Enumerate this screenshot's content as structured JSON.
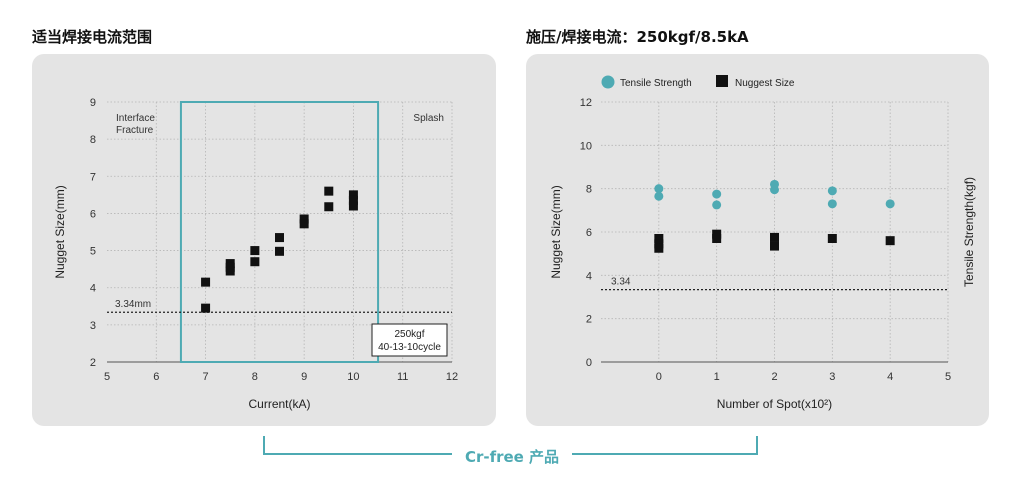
{
  "left_title": "适当焊接电流范围",
  "right_title": "施压/焊接电流：250kgf/8.5kA",
  "footer_label": "Cr-free 产品",
  "colors": {
    "accent": "#4eaab3",
    "panel": "#e4e4e4",
    "marker": "#111111"
  },
  "chart_data": [
    {
      "type": "scatter",
      "title": "适当焊接电流范围",
      "xlabel": "Current(kA)",
      "ylabel": "Nugget Size(mm)",
      "xlim": [
        5,
        12
      ],
      "ylim": [
        2,
        9
      ],
      "xticks": [
        5,
        6,
        7,
        8,
        9,
        10,
        11,
        12
      ],
      "yticks": [
        2,
        3,
        4,
        5,
        6,
        7,
        8,
        9
      ],
      "grid": true,
      "series": [
        {
          "marker": "square",
          "points": [
            [
              7,
              4.15
            ],
            [
              7,
              3.45
            ],
            [
              7.5,
              4.65
            ],
            [
              7.5,
              4.55
            ],
            [
              7.5,
              4.45
            ],
            [
              8,
              5.0
            ],
            [
              8,
              4.7
            ],
            [
              8.5,
              5.35
            ],
            [
              8.5,
              4.98
            ],
            [
              9,
              5.85
            ],
            [
              9,
              5.72
            ],
            [
              9.5,
              6.6
            ],
            [
              9.5,
              6.18
            ],
            [
              10,
              6.5
            ],
            [
              10,
              6.35
            ],
            [
              10,
              6.2
            ]
          ]
        }
      ],
      "threshold": {
        "value": 3.34,
        "label": "3.34mm"
      },
      "region": {
        "x": [
          6.5,
          10.5
        ],
        "y": [
          2,
          9
        ]
      },
      "annotations": {
        "left": [
          "Interface",
          "Fracture"
        ],
        "right": "Splash",
        "condition": [
          "250kgf",
          "40-13-10cycle"
        ]
      }
    },
    {
      "type": "scatter",
      "title": "施压/焊接电流：250kgf/8.5kA",
      "xlabel": "Number of Spot(x10²)",
      "ylabel": "Nugget Size(mm)",
      "ylabel_right": "Tensile Strength(kgf)",
      "xlim": [
        -1,
        5
      ],
      "ylim": [
        0,
        12
      ],
      "xticks": [
        0,
        1,
        2,
        3,
        4,
        5
      ],
      "yticks": [
        0,
        2,
        4,
        6,
        8,
        10,
        12
      ],
      "grid": true,
      "legend_position": "top",
      "series": [
        {
          "name": "Tensile Strength",
          "marker": "circle",
          "color": "#4eaab3",
          "points": [
            [
              0,
              8.0
            ],
            [
              0,
              7.65
            ],
            [
              1,
              7.75
            ],
            [
              1,
              7.25
            ],
            [
              2,
              8.2
            ],
            [
              2,
              7.95
            ],
            [
              3,
              7.9
            ],
            [
              3,
              7.3
            ],
            [
              4,
              7.3
            ]
          ]
        },
        {
          "name": "Nuggest Size",
          "marker": "square",
          "color": "#111111",
          "points": [
            [
              0,
              5.7
            ],
            [
              0,
              5.45
            ],
            [
              0,
              5.25
            ],
            [
              1,
              5.9
            ],
            [
              1,
              5.7
            ],
            [
              2,
              5.75
            ],
            [
              2,
              5.35
            ],
            [
              3,
              5.7
            ],
            [
              4,
              5.6
            ]
          ]
        }
      ],
      "threshold": {
        "value": 3.34,
        "label": "3.34"
      }
    }
  ]
}
